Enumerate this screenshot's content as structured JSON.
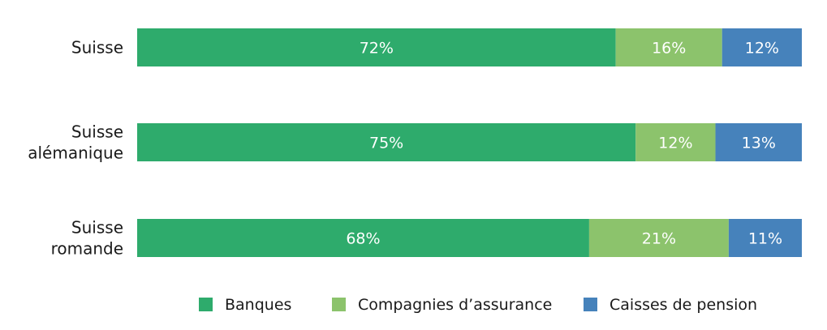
{
  "chart_data": {
    "type": "bar",
    "orientation": "horizontal",
    "stacked": true,
    "categories": [
      [
        "Suisse"
      ],
      [
        "Suisse",
        "alémanique"
      ],
      [
        "Suisse",
        "romande"
      ]
    ],
    "series": [
      {
        "name": "Banques",
        "color": "#2eab6c",
        "values": [
          72,
          75,
          68
        ],
        "labels": [
          "72%",
          "75%",
          "68%"
        ]
      },
      {
        "name": "Compagnies d’assurance",
        "color": "#8cc36c",
        "values": [
          16,
          12,
          21
        ],
        "labels": [
          "16%",
          "12%",
          "21%"
        ]
      },
      {
        "name": "Caisses de pension",
        "color": "#4682bb",
        "values": [
          12,
          13,
          11
        ],
        "labels": [
          "12%",
          "13%",
          "11%"
        ]
      }
    ],
    "xlim": [
      0,
      100
    ],
    "grid": false,
    "legend_position": "bottom"
  }
}
